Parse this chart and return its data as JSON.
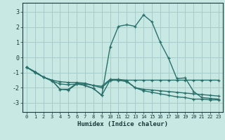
{
  "xlabel": "Humidex (Indice chaleur)",
  "bg_color": "#c8e8e4",
  "grid_color": "#a8ccca",
  "line_color": "#2a706a",
  "xlim": [
    -0.5,
    23.5
  ],
  "ylim": [
    -3.6,
    3.6
  ],
  "xticks": [
    0,
    1,
    2,
    3,
    4,
    5,
    6,
    7,
    8,
    9,
    10,
    11,
    12,
    13,
    14,
    15,
    16,
    17,
    18,
    19,
    20,
    21,
    22,
    23
  ],
  "yticks": [
    -3,
    -2,
    -1,
    0,
    1,
    2,
    3
  ],
  "line1_x": [
    0,
    1,
    2,
    3,
    4,
    5,
    6,
    7,
    8,
    9,
    10,
    11,
    12,
    13,
    14,
    15,
    16,
    17,
    18,
    19,
    20,
    21,
    22,
    23
  ],
  "line1_y": [
    -0.65,
    -0.95,
    -1.3,
    -1.5,
    -2.1,
    -2.15,
    -1.75,
    -1.85,
    -2.05,
    -2.5,
    -1.5,
    -1.5,
    -1.55,
    -2.0,
    -2.2,
    -2.3,
    -2.4,
    -2.5,
    -2.6,
    -2.65,
    -2.75,
    -2.75,
    -2.8,
    -2.8
  ],
  "line2_x": [
    0,
    1,
    2,
    3,
    4,
    5,
    6,
    7,
    8,
    9,
    10,
    11,
    12,
    13,
    14,
    15,
    16,
    17,
    18,
    19,
    20,
    21,
    22,
    23
  ],
  "line2_y": [
    -0.65,
    -0.95,
    -1.3,
    -1.5,
    -1.6,
    -1.65,
    -1.65,
    -1.7,
    -1.85,
    -1.9,
    -1.45,
    -1.45,
    -1.5,
    -1.5,
    -1.5,
    -1.5,
    -1.5,
    -1.5,
    -1.5,
    -1.5,
    -1.5,
    -1.5,
    -1.5,
    -1.5
  ],
  "line3_x": [
    0,
    1,
    2,
    3,
    4,
    5,
    6,
    7,
    8,
    9,
    10,
    11,
    12,
    13,
    14,
    15,
    16,
    17,
    18,
    19,
    20,
    21,
    22,
    23
  ],
  "line3_y": [
    -0.65,
    -1.0,
    -1.3,
    -1.55,
    -1.75,
    -1.8,
    -1.75,
    -1.75,
    -1.85,
    -2.0,
    -1.5,
    -1.5,
    -1.6,
    -2.0,
    -2.1,
    -2.15,
    -2.2,
    -2.25,
    -2.3,
    -2.35,
    -2.4,
    -2.45,
    -2.5,
    -2.55
  ],
  "line4_x": [
    0,
    1,
    2,
    3,
    4,
    5,
    6,
    7,
    8,
    9,
    10,
    11,
    12,
    13,
    14,
    15,
    16,
    17,
    18,
    19,
    20,
    21,
    22,
    23
  ],
  "line4_y": [
    -0.65,
    -0.95,
    -1.3,
    -1.5,
    -2.1,
    -2.1,
    -1.7,
    -1.85,
    -2.05,
    -2.5,
    0.7,
    2.05,
    2.15,
    2.05,
    2.8,
    2.35,
    1.0,
    -0.05,
    -1.4,
    -1.35,
    -2.25,
    -2.65,
    -2.7,
    -2.75
  ]
}
